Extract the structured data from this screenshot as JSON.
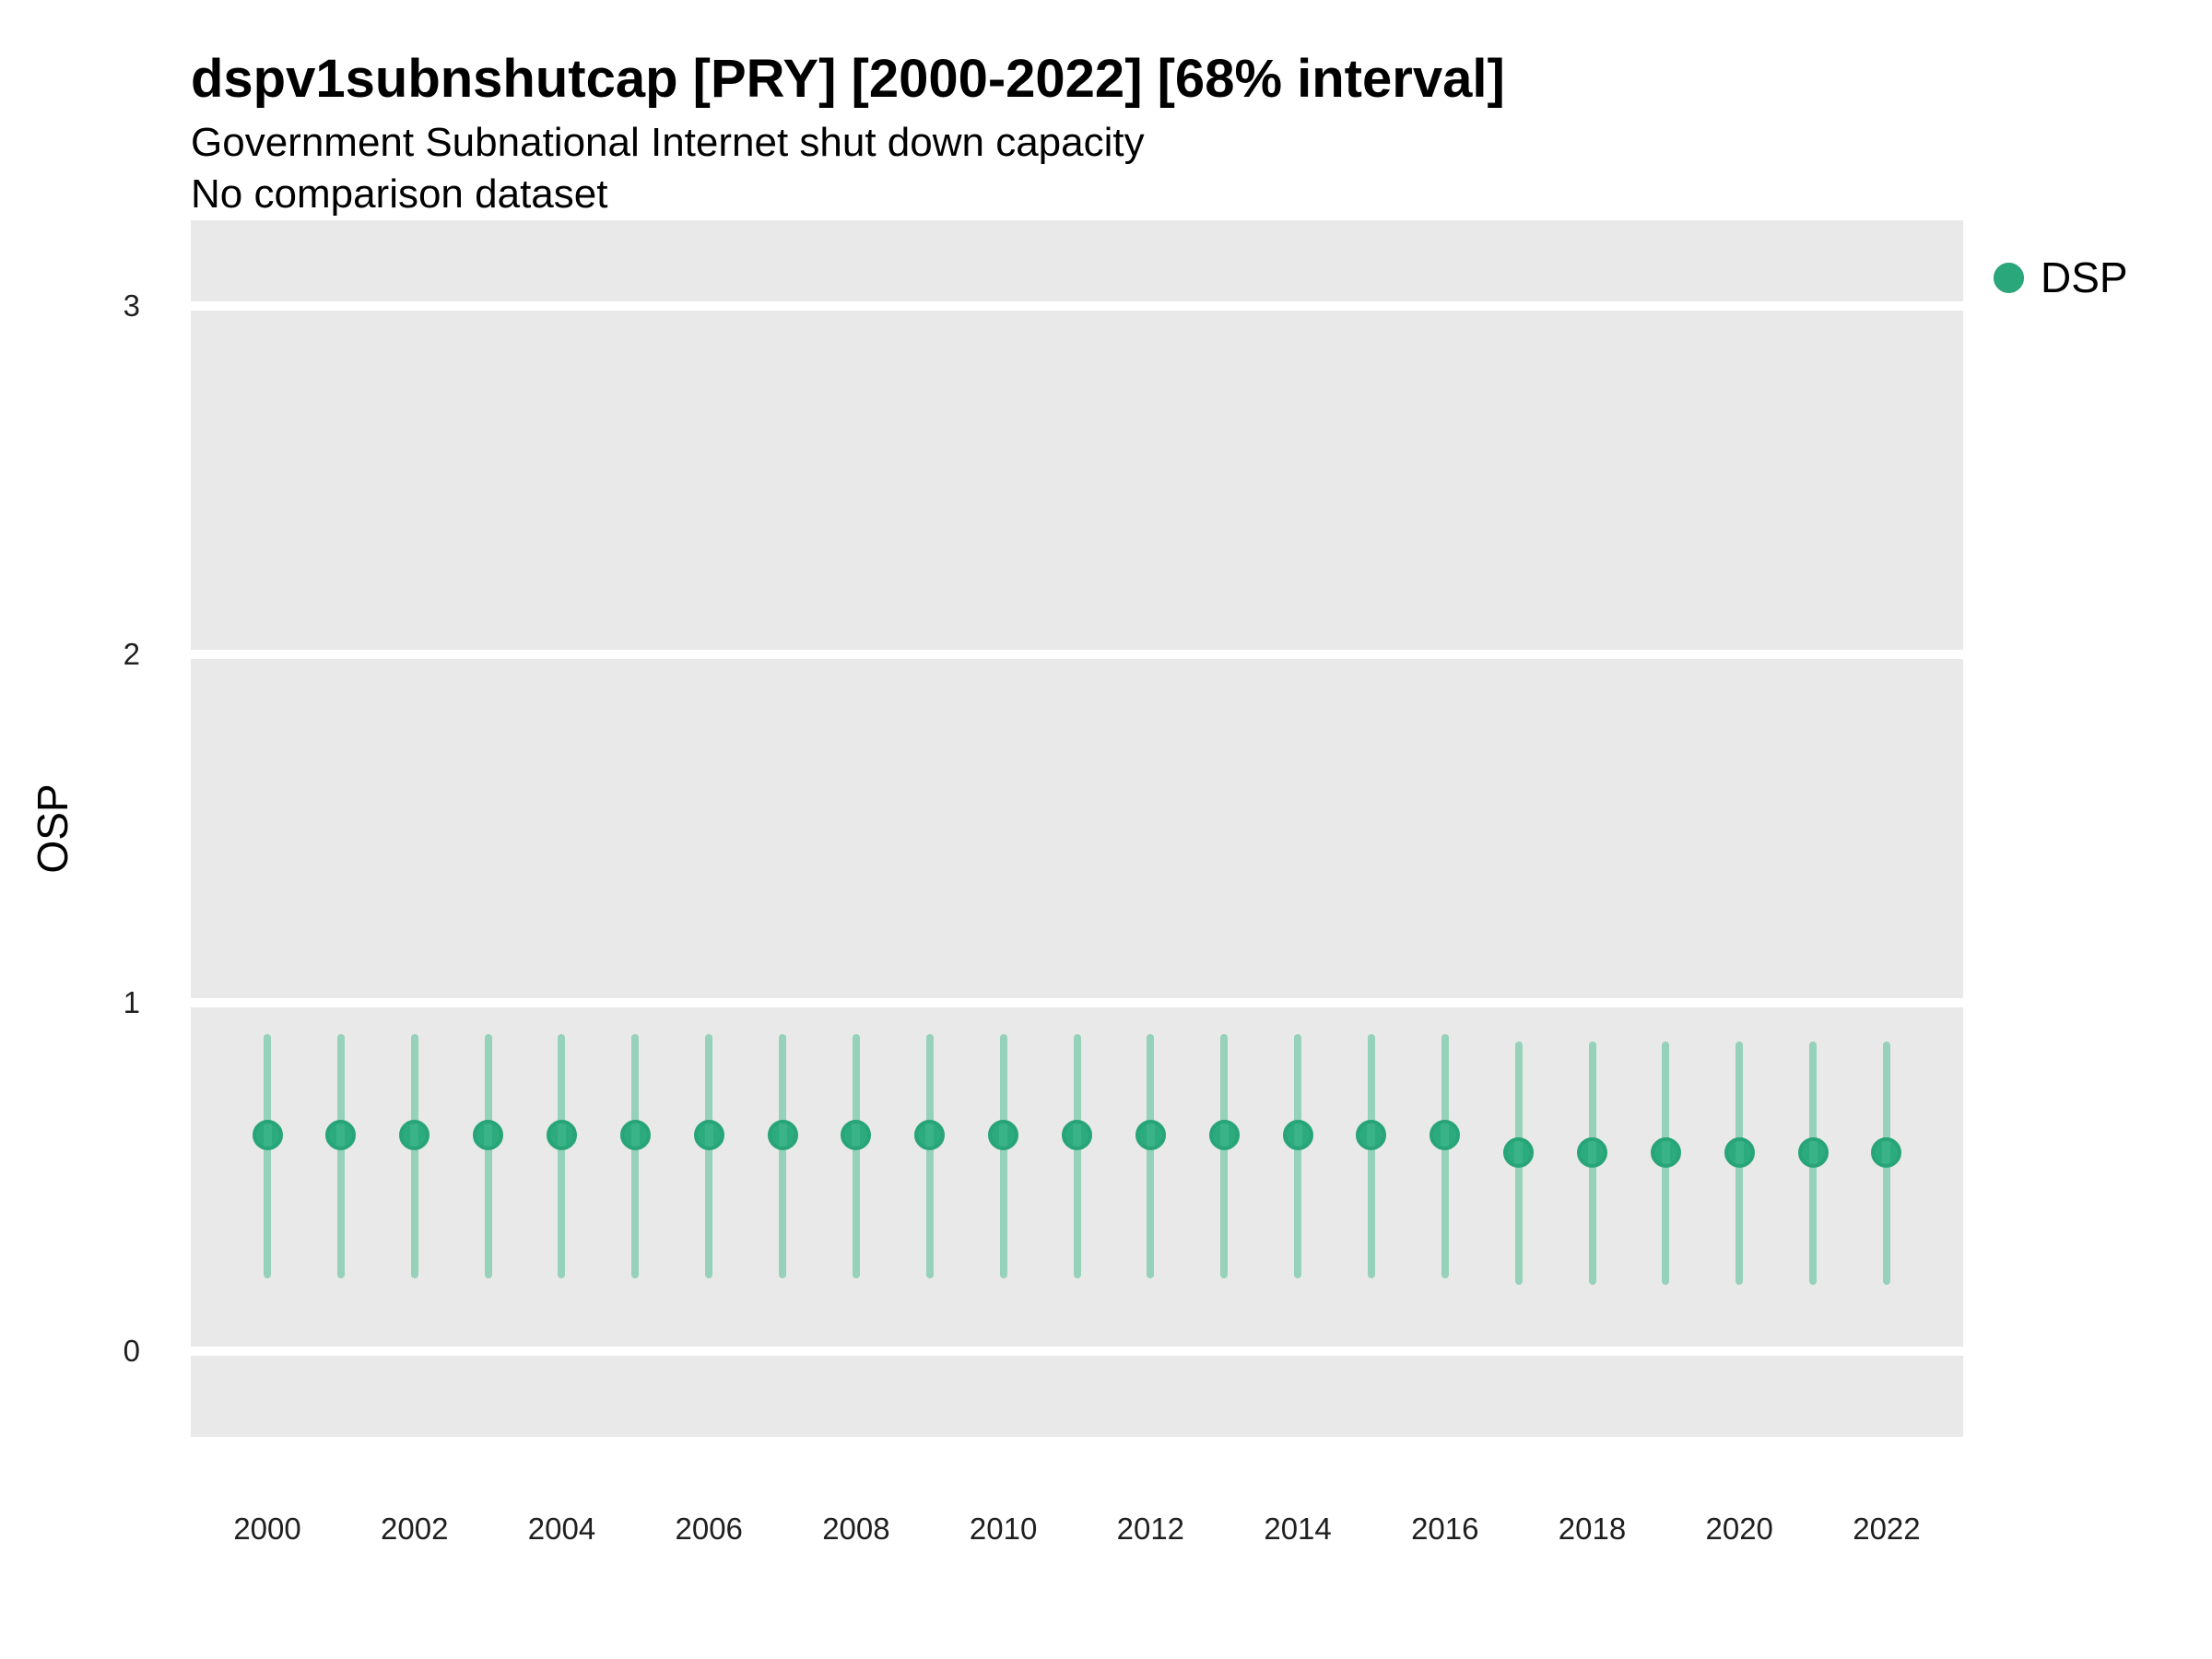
{
  "header": {
    "title": "dspv1subnshutcap [PRY] [2000-2022] [68% interval]",
    "subtitle": "Government Subnational Internet shut down capacity",
    "note": "No comparison dataset"
  },
  "axes": {
    "y_title": "OSP"
  },
  "legend": {
    "items": [
      {
        "label": "DSP",
        "color": "#2aa87c"
      }
    ]
  },
  "chart_data": {
    "type": "scatter",
    "title": "dspv1subnshutcap [PRY] [2000-2022] [68% interval]",
    "subtitle": "Government Subnational Internet shut down capacity",
    "note": "No comparison dataset",
    "interval": "68%",
    "xlabel": "",
    "ylabel": "OSP",
    "x": [
      2000,
      2001,
      2002,
      2003,
      2004,
      2005,
      2006,
      2007,
      2008,
      2009,
      2010,
      2011,
      2012,
      2013,
      2014,
      2015,
      2016,
      2017,
      2018,
      2019,
      2020,
      2021,
      2022
    ],
    "series": [
      {
        "name": "DSP",
        "points": [
          0.62,
          0.62,
          0.62,
          0.62,
          0.62,
          0.62,
          0.62,
          0.62,
          0.62,
          0.62,
          0.62,
          0.62,
          0.62,
          0.62,
          0.62,
          0.62,
          0.62,
          0.57,
          0.57,
          0.57,
          0.57,
          0.57,
          0.57
        ],
        "lo": [
          0.21,
          0.21,
          0.21,
          0.21,
          0.21,
          0.21,
          0.21,
          0.21,
          0.21,
          0.21,
          0.21,
          0.21,
          0.21,
          0.21,
          0.21,
          0.21,
          0.21,
          0.19,
          0.19,
          0.19,
          0.19,
          0.19,
          0.19
        ],
        "hi": [
          0.91,
          0.91,
          0.91,
          0.91,
          0.91,
          0.91,
          0.91,
          0.91,
          0.91,
          0.91,
          0.91,
          0.91,
          0.91,
          0.91,
          0.91,
          0.91,
          0.91,
          0.89,
          0.89,
          0.89,
          0.89,
          0.89,
          0.89
        ]
      }
    ],
    "x_ticks": [
      2000,
      2002,
      2004,
      2006,
      2008,
      2010,
      2012,
      2014,
      2016,
      2018,
      2020,
      2022
    ],
    "y_ticks": [
      0,
      1,
      2,
      3
    ],
    "xlim": [
      1998.96,
      2023.04
    ],
    "ylim": [
      -0.246,
      3.246
    ],
    "grid": "horizontal-major-only",
    "legend_position": "top-right",
    "colors": {
      "point_fill": "#2cab7e",
      "point_ring": "#28a578",
      "interval": "#96d1ba",
      "panel_background": "#e9e9e9",
      "gridline": "#ffffff"
    }
  }
}
